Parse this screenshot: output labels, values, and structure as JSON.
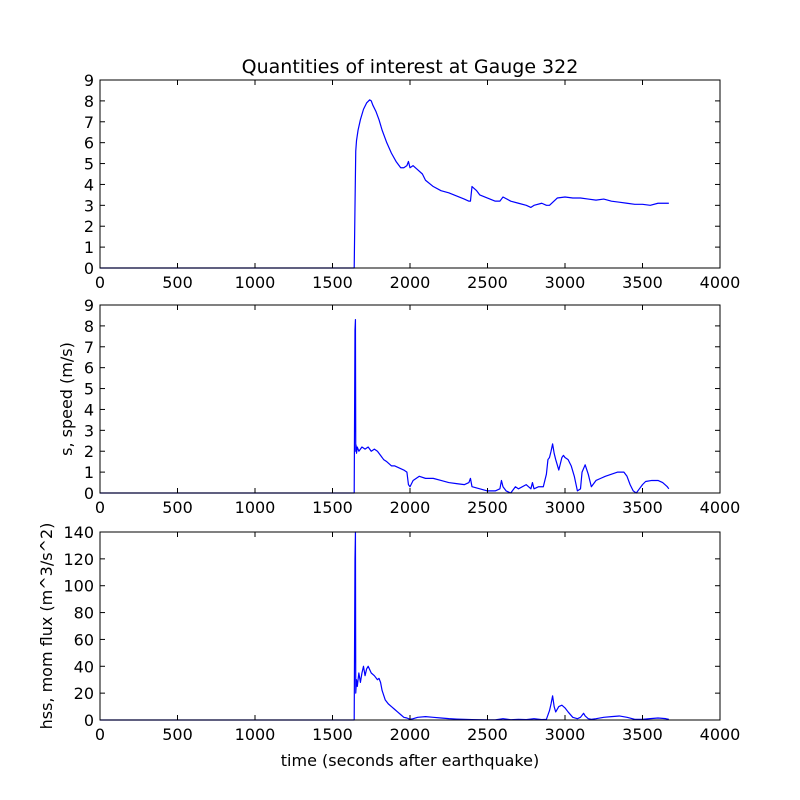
{
  "figure": {
    "title": "Quantities of interest at Gauge 322",
    "line_color": "#0000ff"
  },
  "chart_data": [
    {
      "type": "line",
      "title": "Quantities of interest at Gauge 322",
      "xlabel": "",
      "ylabel": "",
      "xlim": [
        0,
        4000
      ],
      "ylim": [
        0,
        9
      ],
      "xticks": [
        0,
        500,
        1000,
        1500,
        2000,
        2500,
        3000,
        3500,
        4000
      ],
      "yticks": [
        0,
        1,
        2,
        3,
        4,
        5,
        6,
        7,
        8,
        9
      ],
      "grid": false,
      "series": [
        {
          "x": [
            0,
            1600,
            1640,
            1645,
            1650,
            1655,
            1665,
            1680,
            1700,
            1720,
            1740,
            1750,
            1760,
            1780,
            1800,
            1820,
            1850,
            1880,
            1910,
            1940,
            1960,
            1980,
            1990,
            2000,
            2020,
            2050,
            2080,
            2100,
            2150,
            2200,
            2250,
            2300,
            2350,
            2380,
            2390,
            2400,
            2430,
            2450,
            2500,
            2550,
            2580,
            2590,
            2600,
            2650,
            2700,
            2750,
            2780,
            2800,
            2850,
            2880,
            2900,
            2950,
            3000,
            3050,
            3100,
            3150,
            3200,
            3250,
            3300,
            3350,
            3400,
            3450,
            3500,
            3550,
            3600,
            3650,
            3670
          ],
          "y": [
            0,
            0,
            0,
            2.9,
            5.6,
            6.1,
            6.6,
            7.1,
            7.6,
            7.9,
            8.05,
            8.0,
            7.8,
            7.5,
            7.1,
            6.6,
            6.0,
            5.5,
            5.1,
            4.8,
            4.8,
            4.9,
            5.1,
            4.8,
            4.9,
            4.7,
            4.5,
            4.2,
            3.9,
            3.7,
            3.6,
            3.45,
            3.3,
            3.2,
            3.2,
            3.9,
            3.7,
            3.5,
            3.35,
            3.2,
            3.2,
            3.3,
            3.4,
            3.2,
            3.1,
            3.0,
            2.9,
            3.0,
            3.1,
            3.0,
            3.0,
            3.35,
            3.4,
            3.35,
            3.35,
            3.3,
            3.25,
            3.3,
            3.2,
            3.15,
            3.1,
            3.05,
            3.05,
            3.0,
            3.1,
            3.1,
            3.1
          ]
        }
      ]
    },
    {
      "type": "line",
      "title": "",
      "xlabel": "",
      "ylabel": "s, speed (m/s)",
      "xlim": [
        0,
        4000
      ],
      "ylim": [
        0,
        9
      ],
      "xticks": [
        0,
        500,
        1000,
        1500,
        2000,
        2500,
        3000,
        3500,
        4000
      ],
      "yticks": [
        0,
        1,
        2,
        3,
        4,
        5,
        6,
        7,
        8,
        9
      ],
      "grid": false,
      "series": [
        {
          "x": [
            0,
            1640,
            1645,
            1648,
            1650,
            1652,
            1655,
            1660,
            1670,
            1690,
            1710,
            1730,
            1750,
            1770,
            1790,
            1810,
            1830,
            1850,
            1880,
            1900,
            1930,
            1960,
            1980,
            1990,
            2000,
            2020,
            2040,
            2060,
            2100,
            2150,
            2200,
            2250,
            2300,
            2350,
            2380,
            2390,
            2400,
            2450,
            2500,
            2550,
            2580,
            2590,
            2600,
            2620,
            2650,
            2680,
            2700,
            2750,
            2780,
            2790,
            2800,
            2830,
            2860,
            2880,
            2890,
            2900,
            2910,
            2920,
            2930,
            2940,
            2960,
            2980,
            2990,
            3000,
            3020,
            3040,
            3060,
            3080,
            3100,
            3110,
            3130,
            3150,
            3170,
            3200,
            3230,
            3260,
            3300,
            3340,
            3380,
            3400,
            3420,
            3440,
            3460,
            3480,
            3500,
            3520,
            3560,
            3600,
            3630,
            3660,
            3670
          ],
          "y": [
            0,
            0,
            7.8,
            8.3,
            2.0,
            2.3,
            1.9,
            2.2,
            2.0,
            2.2,
            2.1,
            2.2,
            2.0,
            2.1,
            2.0,
            1.8,
            1.6,
            1.5,
            1.3,
            1.3,
            1.2,
            1.1,
            1.0,
            0.4,
            0.3,
            0.6,
            0.7,
            0.8,
            0.7,
            0.7,
            0.6,
            0.5,
            0.45,
            0.4,
            0.5,
            0.7,
            0.3,
            0.2,
            0.1,
            0.1,
            0.2,
            0.6,
            0.3,
            0.1,
            0.0,
            0.3,
            0.2,
            0.4,
            0.2,
            0.5,
            0.2,
            0.3,
            0.3,
            0.9,
            1.6,
            1.7,
            2.0,
            2.35,
            1.9,
            1.6,
            1.1,
            1.7,
            1.8,
            1.7,
            1.6,
            1.3,
            0.8,
            0.1,
            0.2,
            1.0,
            1.35,
            0.9,
            0.3,
            0.6,
            0.7,
            0.8,
            0.9,
            1.0,
            1.0,
            0.8,
            0.4,
            0.1,
            0.0,
            0.2,
            0.4,
            0.55,
            0.6,
            0.6,
            0.5,
            0.3,
            0.2
          ]
        }
      ]
    },
    {
      "type": "line",
      "title": "",
      "xlabel": "time (seconds after earthquake)",
      "ylabel": "hss, mom flux (m^3/s^2)",
      "xlim": [
        0,
        4000
      ],
      "ylim": [
        0,
        140
      ],
      "xticks": [
        0,
        500,
        1000,
        1500,
        2000,
        2500,
        3000,
        3500,
        4000
      ],
      "yticks": [
        0,
        20,
        40,
        60,
        80,
        100,
        120,
        140
      ],
      "grid": false,
      "series": [
        {
          "x": [
            0,
            1640,
            1645,
            1648,
            1650,
            1655,
            1660,
            1670,
            1680,
            1690,
            1700,
            1710,
            1720,
            1730,
            1750,
            1770,
            1790,
            1800,
            1810,
            1820,
            1840,
            1860,
            1880,
            1900,
            1920,
            1940,
            1960,
            1980,
            2000,
            2020,
            2050,
            2100,
            2150,
            2200,
            2250,
            2300,
            2350,
            2400,
            2450,
            2500,
            2550,
            2600,
            2650,
            2700,
            2750,
            2800,
            2850,
            2880,
            2900,
            2910,
            2920,
            2930,
            2940,
            2960,
            2980,
            3000,
            3020,
            3050,
            3080,
            3100,
            3120,
            3130,
            3150,
            3170,
            3200,
            3250,
            3300,
            3350,
            3400,
            3450,
            3500,
            3550,
            3600,
            3650,
            3670
          ],
          "y": [
            0,
            0,
            120,
            140,
            20,
            30,
            25,
            35,
            28,
            35,
            40,
            33,
            38,
            40,
            35,
            33,
            30,
            31,
            28,
            22,
            15,
            12,
            10,
            8,
            6,
            4,
            2,
            1.5,
            0.5,
            1,
            2,
            2.5,
            2,
            1.5,
            1,
            0.7,
            0.5,
            0.3,
            0.2,
            0.1,
            0.1,
            1,
            0.2,
            0.5,
            0.3,
            1,
            0.3,
            0.5,
            7,
            12,
            18,
            10,
            6,
            10,
            11,
            9,
            6,
            2,
            1,
            2,
            5,
            3,
            1,
            0.5,
            1,
            2,
            2.5,
            3,
            2,
            0.5,
            0.5,
            1,
            1.5,
            1,
            0.5
          ]
        }
      ]
    }
  ]
}
